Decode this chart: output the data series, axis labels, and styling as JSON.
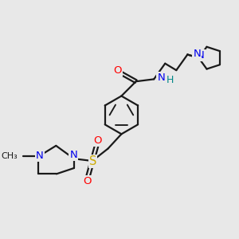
{
  "background_color": "#e8e8e8",
  "bond_color": "#1a1a1a",
  "bond_width": 1.6,
  "colors": {
    "N": "#0000ee",
    "O": "#ff0000",
    "S": "#ccaa00",
    "H": "#008888",
    "C": "#1a1a1a"
  },
  "fig_size": [
    3.0,
    3.0
  ],
  "dpi": 100
}
